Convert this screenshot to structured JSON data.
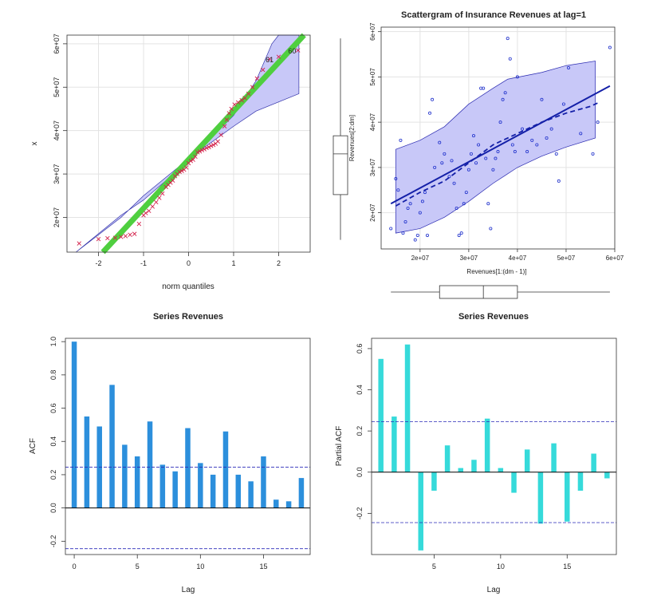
{
  "chart_data": [
    {
      "type": "scatter",
      "id": "qq",
      "title": "",
      "xlabel": "norm quantiles",
      "ylabel": "x",
      "xlim": [
        -2.7,
        2.7
      ],
      "ylim": [
        12000000,
        62000000
      ],
      "xticks": [
        -2,
        -1,
        0,
        1,
        2
      ],
      "xtick_labels": [
        "-2",
        "-1",
        "0",
        "1",
        "2"
      ],
      "yticks": [
        20000000,
        30000000,
        40000000,
        50000000,
        60000000
      ],
      "ytick_labels": [
        "2e+07",
        "3e+07",
        "4e+07",
        "5e+07",
        "6e+07"
      ],
      "reference_line": {
        "intercept": 33300000,
        "slope": 11200000
      },
      "band_upper": [
        [
          -2.5,
          12000000
        ],
        [
          -1.5,
          20500000
        ],
        [
          -1.0,
          24000000
        ],
        [
          0.0,
          33000000
        ],
        [
          1.0,
          43500000
        ],
        [
          1.5,
          51500000
        ],
        [
          1.85,
          60000000
        ],
        [
          2.0,
          62000000
        ],
        [
          2.45,
          62000000
        ]
      ],
      "band_lower": [
        [
          2.45,
          48500000
        ],
        [
          1.5,
          44500000
        ],
        [
          1.0,
          41000000
        ],
        [
          0.0,
          33500000
        ],
        [
          -1.0,
          25000000
        ],
        [
          -1.5,
          20000000
        ],
        [
          -2.5,
          12000000
        ]
      ],
      "points": [
        [
          -2.43,
          14000000
        ],
        [
          -2.0,
          15000000
        ],
        [
          -1.8,
          15200000
        ],
        [
          -1.63,
          15300000
        ],
        [
          -1.5,
          15500000
        ],
        [
          -1.4,
          15700000
        ],
        [
          -1.3,
          16000000
        ],
        [
          -1.2,
          16200000
        ],
        [
          -1.1,
          18500000
        ],
        [
          -1.0,
          20500000
        ],
        [
          -0.95,
          21000000
        ],
        [
          -0.88,
          21500000
        ],
        [
          -0.8,
          22500000
        ],
        [
          -0.72,
          23500000
        ],
        [
          -0.65,
          24500000
        ],
        [
          -0.58,
          25500000
        ],
        [
          -0.5,
          27000000
        ],
        [
          -0.45,
          27500000
        ],
        [
          -0.4,
          28000000
        ],
        [
          -0.35,
          28500000
        ],
        [
          -0.3,
          29500000
        ],
        [
          -0.25,
          30000000
        ],
        [
          -0.2,
          30500000
        ],
        [
          -0.15,
          30700000
        ],
        [
          -0.1,
          31000000
        ],
        [
          -0.05,
          31500000
        ],
        [
          0.0,
          32500000
        ],
        [
          0.05,
          33000000
        ],
        [
          0.1,
          33300000
        ],
        [
          0.15,
          34000000
        ],
        [
          0.2,
          35000000
        ],
        [
          0.25,
          35200000
        ],
        [
          0.3,
          35500000
        ],
        [
          0.35,
          35700000
        ],
        [
          0.4,
          36000000
        ],
        [
          0.45,
          36200000
        ],
        [
          0.5,
          36500000
        ],
        [
          0.55,
          36700000
        ],
        [
          0.6,
          37000000
        ],
        [
          0.65,
          37500000
        ],
        [
          0.72,
          39000000
        ],
        [
          0.8,
          41000000
        ],
        [
          0.85,
          42500000
        ],
        [
          0.9,
          44000000
        ],
        [
          0.95,
          45000000
        ],
        [
          1.02,
          46000000
        ],
        [
          1.1,
          46500000
        ],
        [
          1.18,
          47000000
        ],
        [
          1.25,
          47500000
        ],
        [
          1.33,
          48500000
        ],
        [
          1.42,
          50000000
        ],
        [
          1.52,
          52000000
        ],
        [
          1.65,
          54000000
        ],
        [
          1.8,
          56500000
        ],
        [
          2.0,
          57000000
        ],
        [
          2.43,
          58500000
        ]
      ],
      "point_labels": [
        {
          "text": "61",
          "x": 1.8,
          "y": 56500000
        },
        {
          "text": "60",
          "x": 2.3,
          "y": 58500000
        }
      ],
      "boxplot": {
        "min": 14000000,
        "q1": 24000000,
        "median": 33000000,
        "q3": 37000000,
        "max": 58500000
      }
    },
    {
      "type": "scatter",
      "id": "lagplot",
      "title": "Scattergram of Insurance Revenues at lag=1",
      "xlabel": "Revenues[1:(dm - 1)]",
      "ylabel": "Revenues[2:dm]",
      "xlim": [
        12000000,
        60000000
      ],
      "ylim": [
        12000000,
        61000000
      ],
      "xticks": [
        20000000,
        30000000,
        40000000,
        50000000,
        60000000
      ],
      "xtick_labels": [
        "2e+07",
        "3e+07",
        "4e+07",
        "5e+07",
        "6e+07"
      ],
      "yticks": [
        20000000,
        30000000,
        40000000,
        50000000,
        60000000
      ],
      "ytick_labels": [
        "2e+07",
        "3e+07",
        "4e+07",
        "5e+07",
        "6e+07"
      ],
      "regression_line": [
        [
          14000000,
          22000000
        ],
        [
          59000000,
          48000000
        ]
      ],
      "smooth_line": [
        [
          15000000,
          21500000
        ],
        [
          20000000,
          24500000
        ],
        [
          25000000,
          27000000
        ],
        [
          30000000,
          31000000
        ],
        [
          35000000,
          35000000
        ],
        [
          40000000,
          37500000
        ],
        [
          45000000,
          40000000
        ],
        [
          50000000,
          42000000
        ],
        [
          55000000,
          43500000
        ],
        [
          57000000,
          44500000
        ]
      ],
      "band_upper": [
        [
          15000000,
          34000000
        ],
        [
          20000000,
          36000000
        ],
        [
          25000000,
          39000000
        ],
        [
          30000000,
          44000000
        ],
        [
          35000000,
          47500000
        ],
        [
          38000000,
          49500000
        ],
        [
          45000000,
          51000000
        ],
        [
          50000000,
          52500000
        ],
        [
          56000000,
          53500000
        ]
      ],
      "band_lower": [
        [
          56000000,
          36500000
        ],
        [
          50000000,
          34500000
        ],
        [
          45000000,
          32500000
        ],
        [
          40000000,
          30000000
        ],
        [
          35000000,
          26500000
        ],
        [
          30000000,
          22500000
        ],
        [
          25000000,
          19000000
        ],
        [
          20000000,
          16500000
        ],
        [
          15000000,
          15500000
        ]
      ],
      "points": [
        [
          14000000,
          16500000
        ],
        [
          15000000,
          27500000
        ],
        [
          15500000,
          25000000
        ],
        [
          16000000,
          36000000
        ],
        [
          16500000,
          15500000
        ],
        [
          17000000,
          18000000
        ],
        [
          17500000,
          21000000
        ],
        [
          18000000,
          22000000
        ],
        [
          19000000,
          14000000
        ],
        [
          19500000,
          15000000
        ],
        [
          20000000,
          20000000
        ],
        [
          20500000,
          22500000
        ],
        [
          21000000,
          24500000
        ],
        [
          21500000,
          15000000
        ],
        [
          22000000,
          42000000
        ],
        [
          22500000,
          45000000
        ],
        [
          23000000,
          30000000
        ],
        [
          24000000,
          35500000
        ],
        [
          24500000,
          31000000
        ],
        [
          25000000,
          33000000
        ],
        [
          26000000,
          28000000
        ],
        [
          26500000,
          31500000
        ],
        [
          27000000,
          26500000
        ],
        [
          27500000,
          21000000
        ],
        [
          28000000,
          15000000
        ],
        [
          28500000,
          15500000
        ],
        [
          29000000,
          22000000
        ],
        [
          29500000,
          24500000
        ],
        [
          30000000,
          29500000
        ],
        [
          30500000,
          33000000
        ],
        [
          31000000,
          37000000
        ],
        [
          31500000,
          31000000
        ],
        [
          32000000,
          35000000
        ],
        [
          32500000,
          47500000
        ],
        [
          33000000,
          47500000
        ],
        [
          33500000,
          32000000
        ],
        [
          34000000,
          22000000
        ],
        [
          34500000,
          16500000
        ],
        [
          35000000,
          29500000
        ],
        [
          35500000,
          32000000
        ],
        [
          36000000,
          33500000
        ],
        [
          36500000,
          40000000
        ],
        [
          37000000,
          45000000
        ],
        [
          37500000,
          46500000
        ],
        [
          38000000,
          58500000
        ],
        [
          38500000,
          54000000
        ],
        [
          39000000,
          35000000
        ],
        [
          39500000,
          33500000
        ],
        [
          40000000,
          50000000
        ],
        [
          41000000,
          38500000
        ],
        [
          42000000,
          33500000
        ],
        [
          43000000,
          36000000
        ],
        [
          44000000,
          35000000
        ],
        [
          45000000,
          45000000
        ],
        [
          46000000,
          36500000
        ],
        [
          47000000,
          38500000
        ],
        [
          48000000,
          33000000
        ],
        [
          48500000,
          27000000
        ],
        [
          49500000,
          44000000
        ],
        [
          50500000,
          52000000
        ],
        [
          53000000,
          37500000
        ],
        [
          55500000,
          33000000
        ],
        [
          56500000,
          40000000
        ],
        [
          59000000,
          56500000
        ]
      ],
      "boxplot_x": {
        "min": 14000000,
        "q1": 24000000,
        "median": 33000000,
        "q3": 40000000,
        "max": 59000000
      },
      "boxplot_y": {
        "min": 14000000,
        "q1": 24000000,
        "median": 33000000,
        "q3": 37500000,
        "max": 58500000
      }
    },
    {
      "type": "bar",
      "id": "acf",
      "title": "Series  Revenues",
      "xlabel": "Lag",
      "ylabel": "ACF",
      "xlim": [
        -0.7,
        18.7
      ],
      "ylim": [
        -0.28,
        1.02
      ],
      "xticks": [
        0,
        5,
        10,
        15
      ],
      "xtick_labels": [
        "0",
        "5",
        "10",
        "15"
      ],
      "yticks": [
        -0.2,
        0.0,
        0.2,
        0.4,
        0.6,
        0.8,
        1.0
      ],
      "ytick_labels": [
        "-0.2",
        "0.0",
        "0.2",
        "0.4",
        "0.6",
        "0.8",
        "1.0"
      ],
      "lags": [
        0,
        1,
        2,
        3,
        4,
        5,
        6,
        7,
        8,
        9,
        10,
        11,
        12,
        13,
        14,
        15,
        16,
        17,
        18
      ],
      "values": [
        1.0,
        0.55,
        0.49,
        0.74,
        0.38,
        0.31,
        0.52,
        0.26,
        0.22,
        0.48,
        0.27,
        0.2,
        0.46,
        0.2,
        0.16,
        0.31,
        0.05,
        0.04,
        0.18
      ],
      "conf_bounds": [
        0.245,
        -0.245
      ],
      "color": "#2c8fdc"
    },
    {
      "type": "bar",
      "id": "pacf",
      "title": "Series  Revenues",
      "xlabel": "Lag",
      "ylabel": "Partial ACF",
      "xlim": [
        0.3,
        18.7
      ],
      "ylim": [
        -0.4,
        0.65
      ],
      "xticks": [
        5,
        10,
        15
      ],
      "xtick_labels": [
        "5",
        "10",
        "15"
      ],
      "yticks": [
        -0.2,
        0.0,
        0.2,
        0.4,
        0.6
      ],
      "ytick_labels": [
        "-0.2",
        "0.0",
        "0.2",
        "0.4",
        "0.6"
      ],
      "lags": [
        1,
        2,
        3,
        4,
        5,
        6,
        7,
        8,
        9,
        10,
        11,
        12,
        13,
        14,
        15,
        16,
        17,
        18
      ],
      "values": [
        0.55,
        0.27,
        0.62,
        -0.38,
        -0.09,
        0.13,
        0.02,
        0.06,
        0.26,
        0.02,
        -0.1,
        0.11,
        -0.25,
        0.14,
        -0.24,
        -0.09,
        0.09,
        -0.03
      ],
      "conf_bounds": [
        0.245,
        -0.245
      ],
      "color": "#36dada"
    }
  ]
}
